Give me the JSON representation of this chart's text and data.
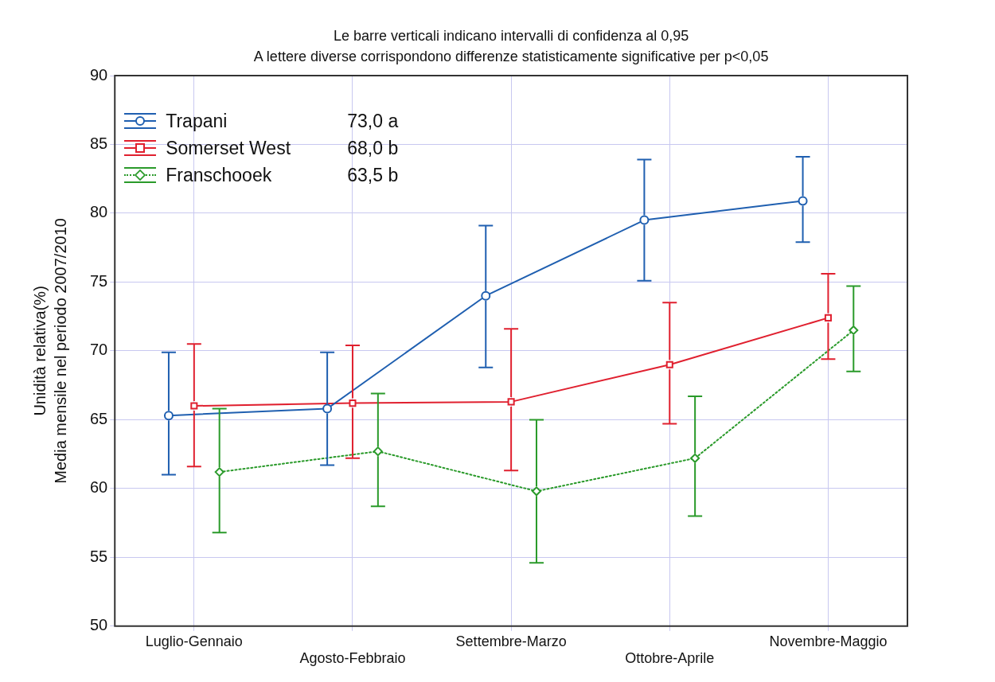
{
  "chart_data": {
    "type": "line",
    "title": "Le barre verticali indicano intervalli di confidenza al 0,95",
    "subtitle": "A lettere diverse corrispondono differenze statisticamente significative per p<0,05",
    "ylabel": "Unidità relativa(%)\nMedia mensile nel periodo 2007/2010",
    "categories": [
      "Luglio-Gennaio",
      "Agosto-Febbraio",
      "Settembre-Marzo",
      "Ottobre-Aprile",
      "Novembre-Maggio"
    ],
    "series": [
      {
        "name": "Trapani",
        "color": "#1f5fb0",
        "marker": "circle",
        "line_style": "solid",
        "values": [
          65.3,
          65.8,
          74.0,
          79.5,
          80.9
        ],
        "errors": [
          [
            61.0,
            69.9
          ],
          [
            61.7,
            69.9
          ],
          [
            68.8,
            79.1
          ],
          [
            75.1,
            83.9
          ],
          [
            77.9,
            84.1
          ]
        ]
      },
      {
        "name": "Somerset West",
        "color": "#e0202f",
        "marker": "square",
        "line_style": "solid",
        "values": [
          66.0,
          66.2,
          66.3,
          69.0,
          72.4
        ],
        "errors": [
          [
            61.6,
            70.5
          ],
          [
            62.2,
            70.4
          ],
          [
            61.3,
            71.6
          ],
          [
            64.7,
            73.5
          ],
          [
            69.4,
            75.6
          ]
        ]
      },
      {
        "name": "Franschooek",
        "color": "#2a9a2a",
        "marker": "diamond",
        "line_style": "dotted",
        "values": [
          61.2,
          62.7,
          59.8,
          62.2,
          71.5
        ],
        "errors": [
          [
            56.8,
            65.8
          ],
          [
            58.7,
            66.9
          ],
          [
            54.6,
            65.0
          ],
          [
            58.0,
            66.7
          ],
          [
            68.5,
            74.7
          ]
        ]
      }
    ],
    "annotations": [
      "73,0 a",
      "68,0 b",
      "63,5 b"
    ],
    "ylim": [
      50,
      90
    ],
    "yticks": [
      50,
      55,
      60,
      65,
      70,
      75,
      80,
      85,
      90
    ],
    "grid": true,
    "legend": "top left"
  }
}
